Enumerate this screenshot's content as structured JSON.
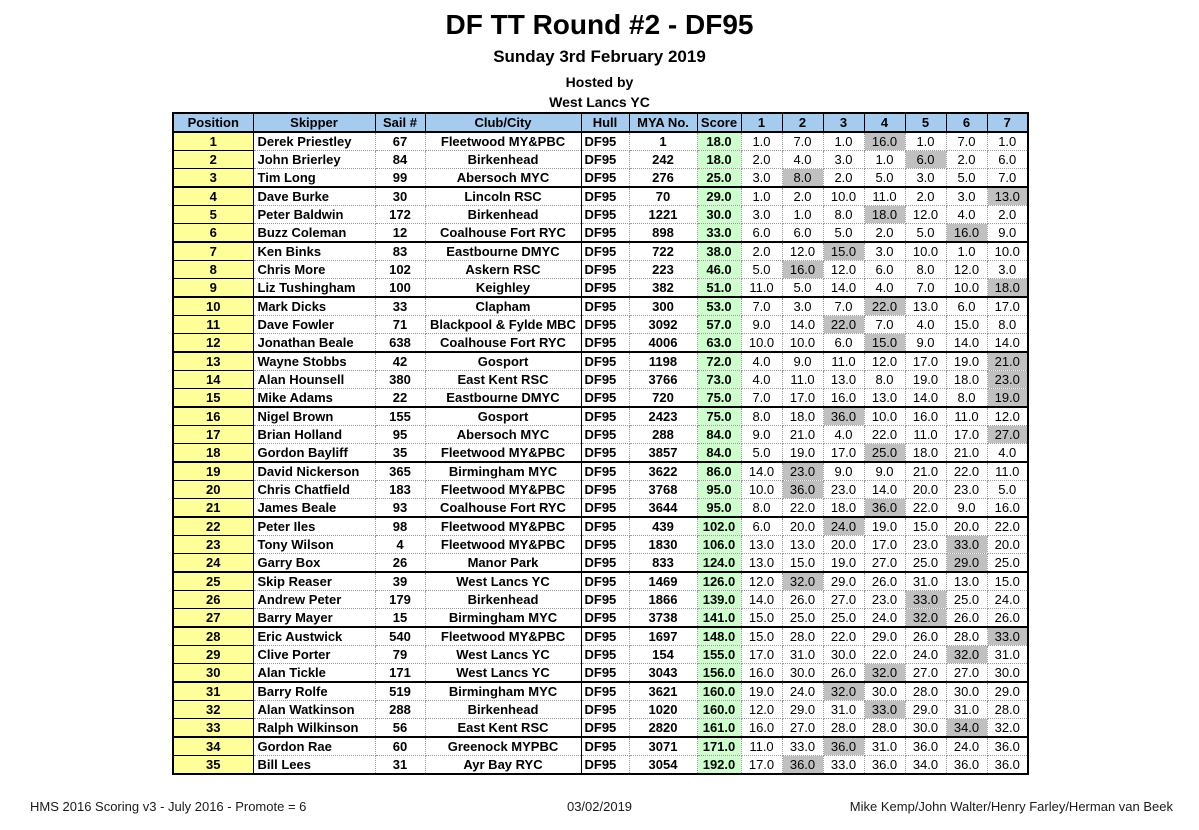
{
  "page": {
    "title": "DF TT Round #2 - DF95",
    "date": "Sunday 3rd February 2019",
    "hosted_by": "Hosted by",
    "host_club": "West Lancs YC"
  },
  "colors": {
    "header_bg": "#A5CBEE",
    "position_bg": "#FFFF99",
    "score_bg": "#CCFFCC",
    "discard_bg": "#C0C0C0"
  },
  "table": {
    "columns": [
      "Position",
      "Skipper",
      "Sail #",
      "Club/City",
      "Hull",
      "MYA No.",
      "Score",
      "1",
      "2",
      "3",
      "4",
      "5",
      "6",
      "7"
    ],
    "rows": [
      {
        "position": "1",
        "skipper": "Derek Priestley",
        "sail": "67",
        "club": "Fleetwood MY&PBC",
        "hull": "DF95",
        "mya": "1",
        "score": "18.0",
        "races": [
          "1.0",
          "7.0",
          "1.0",
          "16.0",
          "1.0",
          "7.0",
          "1.0"
        ],
        "discard": 3
      },
      {
        "position": "2",
        "skipper": "John Brierley",
        "sail": "84",
        "club": "Birkenhead",
        "hull": "DF95",
        "mya": "242",
        "score": "18.0",
        "races": [
          "2.0",
          "4.0",
          "3.0",
          "1.0",
          "6.0",
          "2.0",
          "6.0"
        ],
        "discard": 4
      },
      {
        "position": "3",
        "skipper": "Tim Long",
        "sail": "99",
        "club": "Abersoch MYC",
        "hull": "DF95",
        "mya": "276",
        "score": "25.0",
        "races": [
          "3.0",
          "8.0",
          "2.0",
          "5.0",
          "3.0",
          "5.0",
          "7.0"
        ],
        "discard": 1
      },
      {
        "position": "4",
        "skipper": "Dave Burke",
        "sail": "30",
        "club": "Lincoln RSC",
        "hull": "DF95",
        "mya": "70",
        "score": "29.0",
        "races": [
          "1.0",
          "2.0",
          "10.0",
          "11.0",
          "2.0",
          "3.0",
          "13.0"
        ],
        "discard": 6
      },
      {
        "position": "5",
        "skipper": "Peter Baldwin",
        "sail": "172",
        "club": "Birkenhead",
        "hull": "DF95",
        "mya": "1221",
        "score": "30.0",
        "races": [
          "3.0",
          "1.0",
          "8.0",
          "18.0",
          "12.0",
          "4.0",
          "2.0"
        ],
        "discard": 3
      },
      {
        "position": "6",
        "skipper": "Buzz Coleman",
        "sail": "12",
        "club": "Coalhouse Fort RYC",
        "hull": "DF95",
        "mya": "898",
        "score": "33.0",
        "races": [
          "6.0",
          "6.0",
          "5.0",
          "2.0",
          "5.0",
          "16.0",
          "9.0"
        ],
        "discard": 5
      },
      {
        "position": "7",
        "skipper": "Ken Binks",
        "sail": "83",
        "club": "Eastbourne DMYC",
        "hull": "DF95",
        "mya": "722",
        "score": "38.0",
        "races": [
          "2.0",
          "12.0",
          "15.0",
          "3.0",
          "10.0",
          "1.0",
          "10.0"
        ],
        "discard": 2
      },
      {
        "position": "8",
        "skipper": "Chris More",
        "sail": "102",
        "club": "Askern RSC",
        "hull": "DF95",
        "mya": "223",
        "score": "46.0",
        "races": [
          "5.0",
          "16.0",
          "12.0",
          "6.0",
          "8.0",
          "12.0",
          "3.0"
        ],
        "discard": 1
      },
      {
        "position": "9",
        "skipper": "Liz Tushingham",
        "sail": "100",
        "club": "Keighley",
        "hull": "DF95",
        "mya": "382",
        "score": "51.0",
        "races": [
          "11.0",
          "5.0",
          "14.0",
          "4.0",
          "7.0",
          "10.0",
          "18.0"
        ],
        "discard": 6
      },
      {
        "position": "10",
        "skipper": "Mark Dicks",
        "sail": "33",
        "club": "Clapham",
        "hull": "DF95",
        "mya": "300",
        "score": "53.0",
        "races": [
          "7.0",
          "3.0",
          "7.0",
          "22.0",
          "13.0",
          "6.0",
          "17.0"
        ],
        "discard": 3
      },
      {
        "position": "11",
        "skipper": "Dave Fowler",
        "sail": "71",
        "club": "Blackpool & Fylde MBC",
        "hull": "DF95",
        "mya": "3092",
        "score": "57.0",
        "races": [
          "9.0",
          "14.0",
          "22.0",
          "7.0",
          "4.0",
          "15.0",
          "8.0"
        ],
        "discard": 2
      },
      {
        "position": "12",
        "skipper": "Jonathan Beale",
        "sail": "638",
        "club": "Coalhouse Fort RYC",
        "hull": "DF95",
        "mya": "4006",
        "score": "63.0",
        "races": [
          "10.0",
          "10.0",
          "6.0",
          "15.0",
          "9.0",
          "14.0",
          "14.0"
        ],
        "discard": 3
      },
      {
        "position": "13",
        "skipper": "Wayne Stobbs",
        "sail": "42",
        "club": "Gosport",
        "hull": "DF95",
        "mya": "1198",
        "score": "72.0",
        "races": [
          "4.0",
          "9.0",
          "11.0",
          "12.0",
          "17.0",
          "19.0",
          "21.0"
        ],
        "discard": 6
      },
      {
        "position": "14",
        "skipper": "Alan Hounsell",
        "sail": "380",
        "club": "East Kent RSC",
        "hull": "DF95",
        "mya": "3766",
        "score": "73.0",
        "races": [
          "4.0",
          "11.0",
          "13.0",
          "8.0",
          "19.0",
          "18.0",
          "23.0"
        ],
        "discard": 6
      },
      {
        "position": "15",
        "skipper": "Mike Adams",
        "sail": "22",
        "club": "Eastbourne DMYC",
        "hull": "DF95",
        "mya": "720",
        "score": "75.0",
        "races": [
          "7.0",
          "17.0",
          "16.0",
          "13.0",
          "14.0",
          "8.0",
          "19.0"
        ],
        "discard": 6
      },
      {
        "position": "16",
        "skipper": "Nigel Brown",
        "sail": "155",
        "club": "Gosport",
        "hull": "DF95",
        "mya": "2423",
        "score": "75.0",
        "races": [
          "8.0",
          "18.0",
          "36.0",
          "10.0",
          "16.0",
          "11.0",
          "12.0"
        ],
        "discard": 2
      },
      {
        "position": "17",
        "skipper": "Brian Holland",
        "sail": "95",
        "club": "Abersoch MYC",
        "hull": "DF95",
        "mya": "288",
        "score": "84.0",
        "races": [
          "9.0",
          "21.0",
          "4.0",
          "22.0",
          "11.0",
          "17.0",
          "27.0"
        ],
        "discard": 6
      },
      {
        "position": "18",
        "skipper": "Gordon Bayliff",
        "sail": "35",
        "club": "Fleetwood MY&PBC",
        "hull": "DF95",
        "mya": "3857",
        "score": "84.0",
        "races": [
          "5.0",
          "19.0",
          "17.0",
          "25.0",
          "18.0",
          "21.0",
          "4.0"
        ],
        "discard": 3
      },
      {
        "position": "19",
        "skipper": "David Nickerson",
        "sail": "365",
        "club": "Birmingham MYC",
        "hull": "DF95",
        "mya": "3622",
        "score": "86.0",
        "races": [
          "14.0",
          "23.0",
          "9.0",
          "9.0",
          "21.0",
          "22.0",
          "11.0"
        ],
        "discard": 1
      },
      {
        "position": "20",
        "skipper": "Chris Chatfield",
        "sail": "183",
        "club": "Fleetwood MY&PBC",
        "hull": "DF95",
        "mya": "3768",
        "score": "95.0",
        "races": [
          "10.0",
          "36.0",
          "23.0",
          "14.0",
          "20.0",
          "23.0",
          "5.0"
        ],
        "discard": 1
      },
      {
        "position": "21",
        "skipper": "James Beale",
        "sail": "93",
        "club": "Coalhouse Fort RYC",
        "hull": "DF95",
        "mya": "3644",
        "score": "95.0",
        "races": [
          "8.0",
          "22.0",
          "18.0",
          "36.0",
          "22.0",
          "9.0",
          "16.0"
        ],
        "discard": 3
      },
      {
        "position": "22",
        "skipper": "Peter Iles",
        "sail": "98",
        "club": "Fleetwood MY&PBC",
        "hull": "DF95",
        "mya": "439",
        "score": "102.0",
        "races": [
          "6.0",
          "20.0",
          "24.0",
          "19.0",
          "15.0",
          "20.0",
          "22.0"
        ],
        "discard": 2
      },
      {
        "position": "23",
        "skipper": "Tony Wilson",
        "sail": "4",
        "club": "Fleetwood MY&PBC",
        "hull": "DF95",
        "mya": "1830",
        "score": "106.0",
        "races": [
          "13.0",
          "13.0",
          "20.0",
          "17.0",
          "23.0",
          "33.0",
          "20.0"
        ],
        "discard": 5
      },
      {
        "position": "24",
        "skipper": "Garry Box",
        "sail": "26",
        "club": "Manor Park",
        "hull": "DF95",
        "mya": "833",
        "score": "124.0",
        "races": [
          "13.0",
          "15.0",
          "19.0",
          "27.0",
          "25.0",
          "29.0",
          "25.0"
        ],
        "discard": 5
      },
      {
        "position": "25",
        "skipper": "Skip Reaser",
        "sail": "39",
        "club": "West Lancs YC",
        "hull": "DF95",
        "mya": "1469",
        "score": "126.0",
        "races": [
          "12.0",
          "32.0",
          "29.0",
          "26.0",
          "31.0",
          "13.0",
          "15.0"
        ],
        "discard": 1
      },
      {
        "position": "26",
        "skipper": "Andrew Peter",
        "sail": "179",
        "club": "Birkenhead",
        "hull": "DF95",
        "mya": "1866",
        "score": "139.0",
        "races": [
          "14.0",
          "26.0",
          "27.0",
          "23.0",
          "33.0",
          "25.0",
          "24.0"
        ],
        "discard": 4
      },
      {
        "position": "27",
        "skipper": "Barry Mayer",
        "sail": "15",
        "club": "Birmingham MYC",
        "hull": "DF95",
        "mya": "3738",
        "score": "141.0",
        "races": [
          "15.0",
          "25.0",
          "25.0",
          "24.0",
          "32.0",
          "26.0",
          "26.0"
        ],
        "discard": 4
      },
      {
        "position": "28",
        "skipper": "Eric Austwick",
        "sail": "540",
        "club": "Fleetwood MY&PBC",
        "hull": "DF95",
        "mya": "1697",
        "score": "148.0",
        "races": [
          "15.0",
          "28.0",
          "22.0",
          "29.0",
          "26.0",
          "28.0",
          "33.0"
        ],
        "discard": 6
      },
      {
        "position": "29",
        "skipper": "Clive Porter",
        "sail": "79",
        "club": "West Lancs YC",
        "hull": "DF95",
        "mya": "154",
        "score": "155.0",
        "races": [
          "17.0",
          "31.0",
          "30.0",
          "22.0",
          "24.0",
          "32.0",
          "31.0"
        ],
        "discard": 5
      },
      {
        "position": "30",
        "skipper": "Alan Tickle",
        "sail": "171",
        "club": "West Lancs YC",
        "hull": "DF95",
        "mya": "3043",
        "score": "156.0",
        "races": [
          "16.0",
          "30.0",
          "26.0",
          "32.0",
          "27.0",
          "27.0",
          "30.0"
        ],
        "discard": 3
      },
      {
        "position": "31",
        "skipper": "Barry Rolfe",
        "sail": "519",
        "club": "Birmingham MYC",
        "hull": "DF95",
        "mya": "3621",
        "score": "160.0",
        "races": [
          "19.0",
          "24.0",
          "32.0",
          "30.0",
          "28.0",
          "30.0",
          "29.0"
        ],
        "discard": 2
      },
      {
        "position": "32",
        "skipper": "Alan Watkinson",
        "sail": "288",
        "club": "Birkenhead",
        "hull": "DF95",
        "mya": "1020",
        "score": "160.0",
        "races": [
          "12.0",
          "29.0",
          "31.0",
          "33.0",
          "29.0",
          "31.0",
          "28.0"
        ],
        "discard": 3
      },
      {
        "position": "33",
        "skipper": "Ralph Wilkinson",
        "sail": "56",
        "club": "East Kent RSC",
        "hull": "DF95",
        "mya": "2820",
        "score": "161.0",
        "races": [
          "16.0",
          "27.0",
          "28.0",
          "28.0",
          "30.0",
          "34.0",
          "32.0"
        ],
        "discard": 5
      },
      {
        "position": "34",
        "skipper": "Gordon Rae",
        "sail": "60",
        "club": "Greenock MYPBC",
        "hull": "DF95",
        "mya": "3071",
        "score": "171.0",
        "races": [
          "11.0",
          "33.0",
          "36.0",
          "31.0",
          "36.0",
          "24.0",
          "36.0"
        ],
        "discard": 2
      },
      {
        "position": "35",
        "skipper": "Bill Lees",
        "sail": "31",
        "club": "Ayr Bay RYC",
        "hull": "DF95",
        "mya": "3054",
        "score": "192.0",
        "races": [
          "17.0",
          "36.0",
          "33.0",
          "36.0",
          "34.0",
          "36.0",
          "36.0"
        ],
        "discard": 1
      }
    ],
    "group_size": 3
  },
  "footer": {
    "left": "HMS 2016 Scoring v3 - July 2016 - Promote = 6",
    "center": "03/02/2019",
    "right": "Mike Kemp/John Walter/Henry Farley/Herman van Beek"
  }
}
